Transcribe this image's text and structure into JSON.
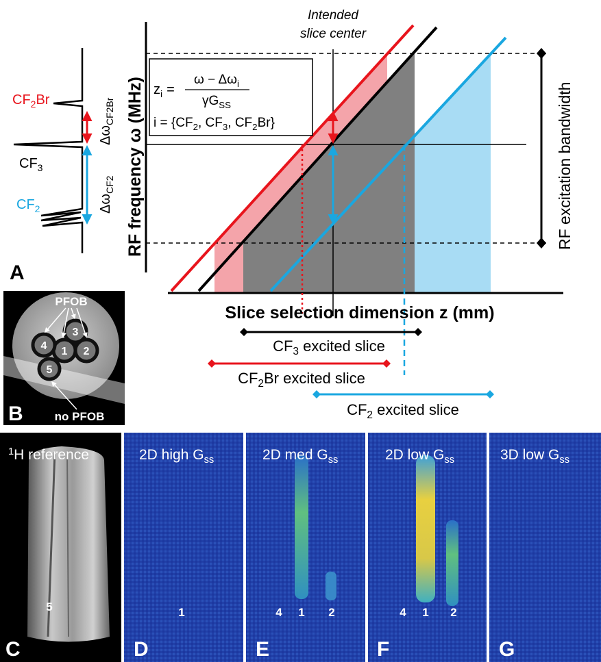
{
  "panel_a": {
    "letter": "A",
    "spectrum": {
      "cf2br": [
        "CF",
        "2",
        "Br"
      ],
      "cf3": [
        "CF",
        "3"
      ],
      "cf2": [
        "CF",
        "2"
      ],
      "d_cf2br": [
        "Δω",
        "CF2Br"
      ],
      "d_cf2": [
        "Δω",
        "CF2"
      ]
    },
    "y_axis_label": "RF frequency ω (MHz)",
    "intended": [
      "Intended",
      "slice center"
    ],
    "equation": {
      "lhs": [
        "z",
        "i"
      ],
      "eq": "=",
      "num": [
        "ω − Δω",
        "i"
      ],
      "den": [
        "γG",
        "SS"
      ],
      "set": [
        "i = {CF",
        "2",
        ", CF",
        "3",
        ", CF",
        "2",
        "Br}"
      ]
    },
    "bandwidth": "RF excitation bandwidth",
    "x_axis_label": "Slice selection dimension z (mm)",
    "slices": [
      [
        "CF",
        "3",
        " excited slice"
      ],
      [
        "CF",
        "2",
        "Br excited slice"
      ],
      [
        "CF",
        "2",
        " excited slice"
      ]
    ]
  },
  "panel_b": {
    "letter": "B",
    "pfob": "PFOB",
    "no_pfob": "no PFOB",
    "vials": [
      "1",
      "2",
      "3",
      "4",
      "5"
    ]
  },
  "images": [
    {
      "letter": "C",
      "title": [
        "1",
        "H reference"
      ],
      "markers": [
        "5"
      ]
    },
    {
      "letter": "D",
      "title": [
        "2D high G",
        "ss"
      ],
      "markers": [
        "1"
      ]
    },
    {
      "letter": "E",
      "title": [
        "2D med G",
        "ss"
      ],
      "markers": [
        "4",
        "1",
        "2"
      ]
    },
    {
      "letter": "F",
      "title": [
        "2D low G",
        "ss"
      ],
      "markers": [
        "4",
        "1",
        "2"
      ]
    },
    {
      "letter": "G",
      "title": [
        "3D low G",
        "ss"
      ]
    }
  ]
}
